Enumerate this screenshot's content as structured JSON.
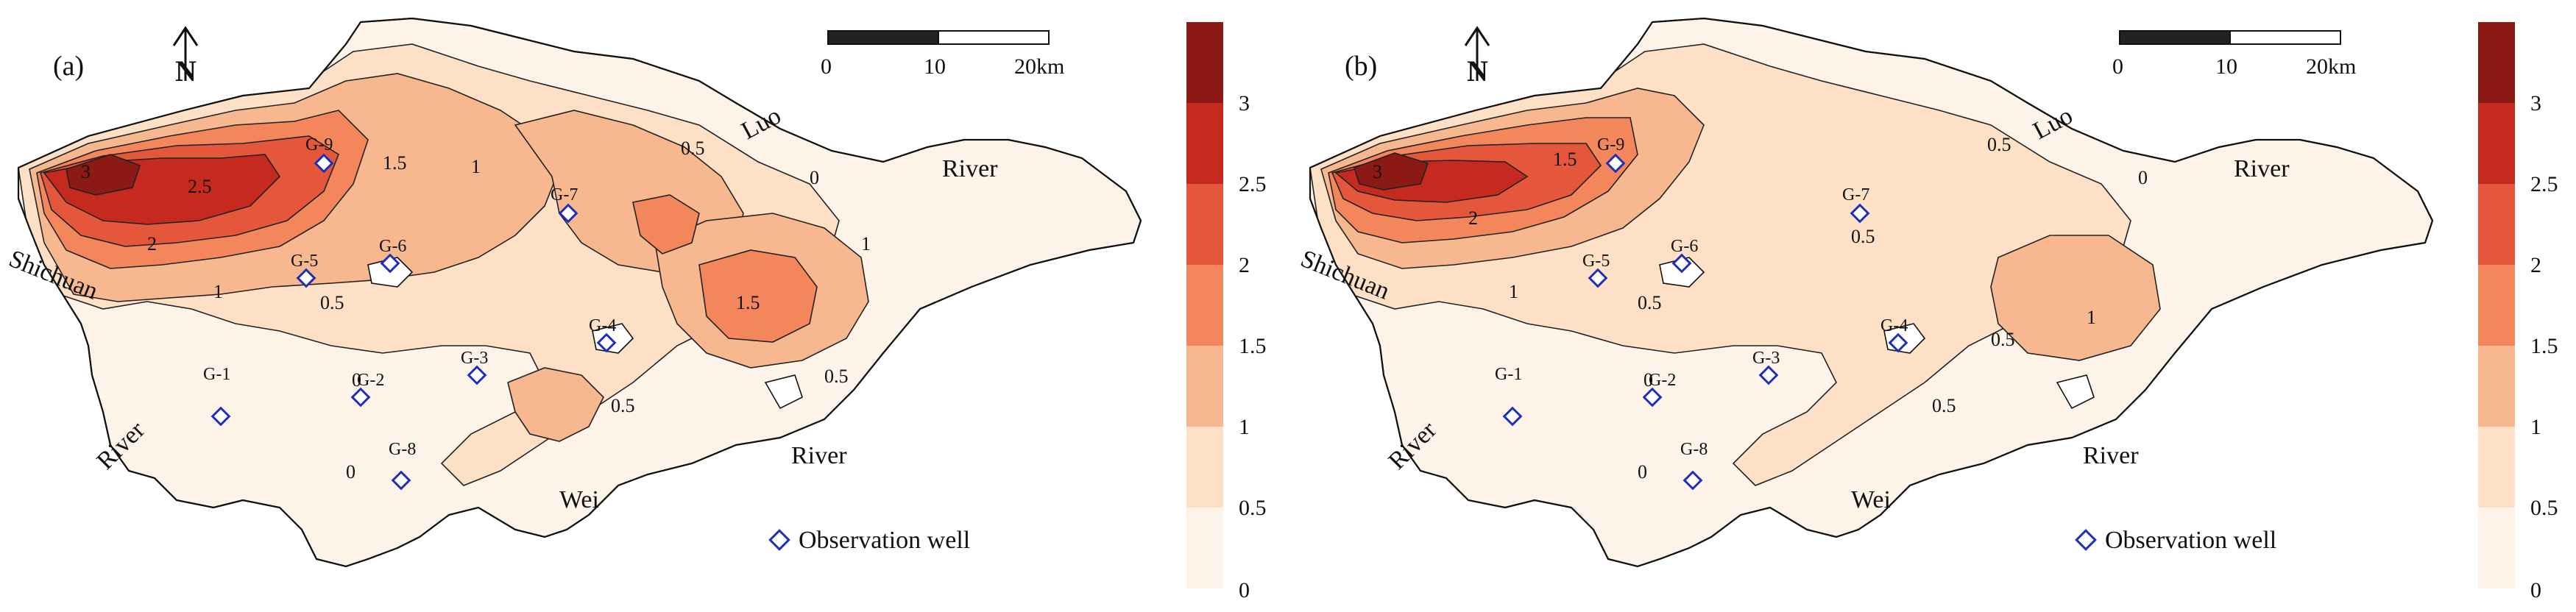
{
  "panels": [
    {
      "id": "a",
      "label": "(a)",
      "wells": [
        "G-9",
        "G-5",
        "G-6",
        "G-7",
        "G-4",
        "G-3",
        "G-2",
        "G-1",
        "G-8"
      ],
      "contour_labels": [
        "3",
        "2.5",
        "2",
        "1.5",
        "1",
        "1",
        "1",
        "0.5",
        "0.5",
        "0.5",
        "1.5",
        "0.5",
        "0",
        "0",
        "0"
      ]
    },
    {
      "id": "b",
      "label": "(b)",
      "wells": [
        "G-9",
        "G-5",
        "G-6",
        "G-7",
        "G-4",
        "G-3",
        "G-2",
        "G-1",
        "G-8"
      ],
      "contour_labels": [
        "3",
        "2",
        "1.5",
        "1",
        "0.5",
        "0.5",
        "0.5",
        "1",
        "0.5",
        "0.5",
        "0",
        "0",
        "0"
      ]
    }
  ],
  "rivers": {
    "luo": "Luo",
    "river_ne": "River",
    "shichuan": "Shichuan",
    "river_w": "River",
    "wei": "Wei",
    "river_s": "River"
  },
  "scale_bar": {
    "ticks": [
      "0",
      "10",
      "20km"
    ]
  },
  "north_arrow": "N",
  "legend": {
    "observation_well": "Observation well"
  },
  "colorbar": {
    "ticks": [
      "3",
      "2.5",
      "2",
      "1.5",
      "1",
      "0.5",
      "0"
    ],
    "colors": [
      "#8b1a14",
      "#c62a1f",
      "#e4573b",
      "#f3865b",
      "#f8b88f",
      "#fde0c6",
      "#fdf3e9"
    ]
  },
  "colors": {
    "well_marker": "#1f2fb8",
    "outline": "#111111"
  }
}
